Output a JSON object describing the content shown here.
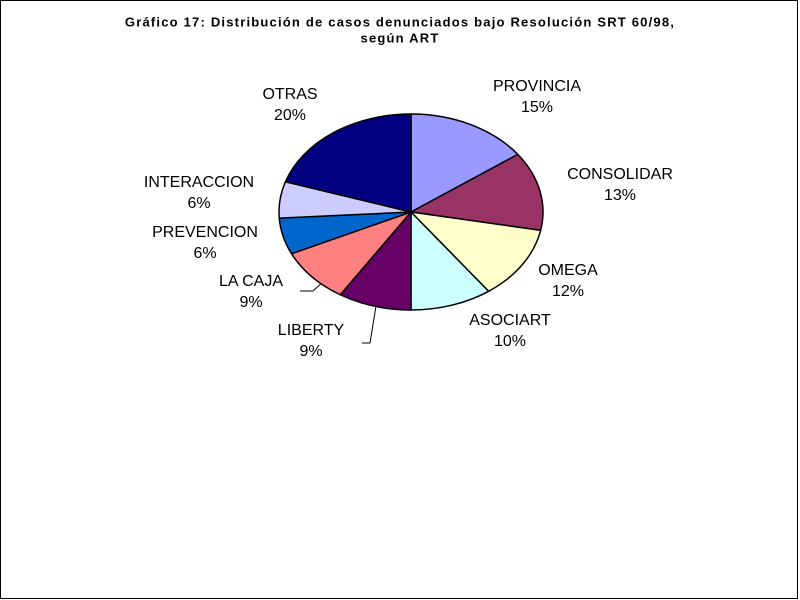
{
  "chart_data": {
    "type": "pie",
    "title": [
      "Gráfico 17: Distribución de casos denunciados bajo Resolución SRT 60/98,",
      "según ART"
    ],
    "categories": [
      "PROVINCIA",
      "CONSOLIDAR",
      "OMEGA",
      "ASOCIART",
      "LIBERTY",
      "LA CAJA",
      "PREVENCION",
      "INTERACCION",
      "OTRAS"
    ],
    "values": [
      15,
      13,
      12,
      10,
      9,
      9,
      6,
      6,
      20
    ],
    "value_labels": [
      "15%",
      "13%",
      "12%",
      "10%",
      "9%",
      "9%",
      "6%",
      "6%",
      "20%"
    ],
    "colors": [
      "#9999ff",
      "#993366",
      "#ffffcc",
      "#ccffff",
      "#660066",
      "#ff8080",
      "#0066cc",
      "#ccccff",
      "#000080"
    ]
  }
}
